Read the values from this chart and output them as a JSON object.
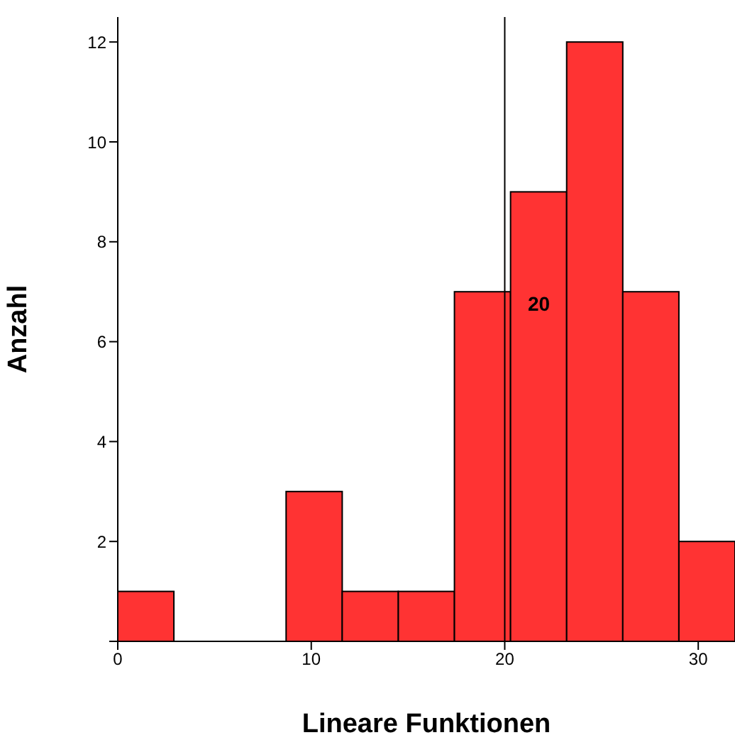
{
  "chart_data": {
    "type": "histogram",
    "xlabel": "Lineare Funktionen",
    "ylabel": "Anzahl",
    "bins": [
      0,
      2.9,
      5.8,
      8.7,
      11.6,
      14.5,
      17.4,
      20.3,
      23.2,
      26.1,
      29,
      31.9
    ],
    "values": [
      1,
      0,
      0,
      3,
      1,
      1,
      7,
      9,
      12,
      7,
      2
    ],
    "color": "#ff3333",
    "xlim": [
      0,
      31.9
    ],
    "xticks": [
      0,
      10,
      20,
      30
    ],
    "ylim": [
      0,
      12.5
    ],
    "yticks": [
      {
        "value": 0,
        "label": null
      },
      2,
      4,
      6,
      8,
      10,
      12
    ],
    "ref_lines": [
      {
        "axis": "x",
        "value": 20,
        "label": "20",
        "color": "#000000"
      }
    ],
    "grid": false,
    "legend": false
  }
}
